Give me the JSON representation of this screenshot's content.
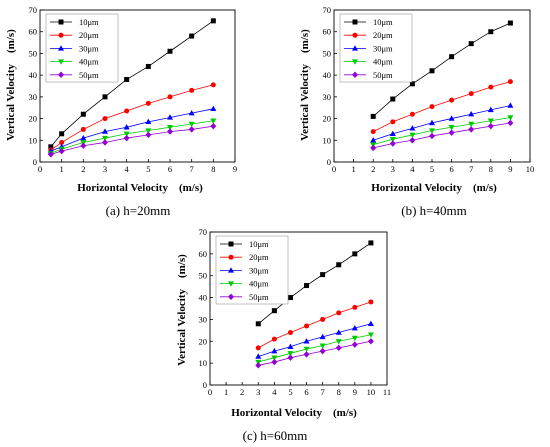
{
  "chart_data": [
    {
      "type": "line",
      "caption": "(a) h=20mm",
      "xlabel": "Horizontal Velocity　(m/s)",
      "ylabel": "Vertical Velocity　(m/s)",
      "xlim": [
        0,
        9
      ],
      "ylim": [
        0,
        70
      ],
      "xticks": [
        "0",
        "1",
        "2",
        "3",
        "4",
        "5",
        "6",
        "7",
        "8",
        "9"
      ],
      "yticks": [
        "0",
        "10",
        "20",
        "30",
        "40",
        "50",
        "60",
        "70"
      ],
      "legend_position": "top-left",
      "x": [
        0.5,
        1,
        2,
        3,
        4,
        5,
        6,
        7,
        8
      ],
      "series": [
        {
          "name": "10μm",
          "color": "#000000",
          "marker": "square",
          "values": [
            7,
            13,
            22,
            30,
            38,
            44,
            51,
            58,
            65
          ]
        },
        {
          "name": "20μm",
          "color": "#ff0000",
          "marker": "circle",
          "values": [
            5.5,
            9,
            15,
            20,
            23.5,
            27,
            30,
            33,
            35.5
          ]
        },
        {
          "name": "30μm",
          "color": "#0000ff",
          "marker": "triangle",
          "values": [
            5,
            7,
            11,
            14,
            16,
            18.5,
            20.5,
            22.5,
            24.5
          ]
        },
        {
          "name": "40μm",
          "color": "#00cc00",
          "marker": "tri-down",
          "values": [
            4,
            6,
            9,
            11,
            13,
            14.5,
            16,
            17.5,
            19
          ]
        },
        {
          "name": "50μm",
          "color": "#9400d3",
          "marker": "diamond",
          "values": [
            3.5,
            5,
            7.5,
            9,
            11,
            12.5,
            14,
            15,
            16.5
          ]
        }
      ]
    },
    {
      "type": "line",
      "caption": "(b) h=40mm",
      "xlabel": "Horizontal Velocity　(m/s)",
      "ylabel": "Vertical Velocity　(m/s)",
      "xlim": [
        0,
        10
      ],
      "ylim": [
        0,
        70
      ],
      "xticks": [
        "0",
        "1",
        "2",
        "3",
        "4",
        "5",
        "6",
        "7",
        "8",
        "9",
        "10"
      ],
      "yticks": [
        "0",
        "10",
        "20",
        "30",
        "40",
        "50",
        "60",
        "70"
      ],
      "legend_position": "top-left",
      "x": [
        2,
        3,
        4,
        5,
        6,
        7,
        8,
        9
      ],
      "series": [
        {
          "name": "10μm",
          "color": "#000000",
          "marker": "square",
          "values": [
            21,
            29,
            36,
            42,
            48.5,
            54.5,
            60,
            64
          ]
        },
        {
          "name": "20μm",
          "color": "#ff0000",
          "marker": "circle",
          "values": [
            14,
            18.5,
            22,
            25.5,
            28.5,
            31.5,
            34.5,
            37
          ]
        },
        {
          "name": "30μm",
          "color": "#0000ff",
          "marker": "triangle",
          "values": [
            10,
            13,
            15.5,
            18,
            20,
            22,
            24,
            26
          ]
        },
        {
          "name": "40μm",
          "color": "#00cc00",
          "marker": "tri-down",
          "values": [
            8,
            10.5,
            12.5,
            14.5,
            16,
            17.5,
            19,
            20.5
          ]
        },
        {
          "name": "50μm",
          "color": "#9400d3",
          "marker": "diamond",
          "values": [
            6.5,
            8.5,
            10,
            12,
            13.5,
            15,
            16.5,
            18
          ]
        }
      ]
    },
    {
      "type": "line",
      "caption": "(c) h=60mm",
      "xlabel": "Horizontal Velocity　(m/s)",
      "ylabel": "Vertical Velocity　(m/s)",
      "xlim": [
        0,
        11
      ],
      "ylim": [
        0,
        70
      ],
      "xticks": [
        "0",
        "1",
        "2",
        "3",
        "4",
        "5",
        "6",
        "7",
        "8",
        "9",
        "10",
        "11"
      ],
      "yticks": [
        "0",
        "10",
        "20",
        "30",
        "40",
        "50",
        "60",
        "70"
      ],
      "legend_position": "top-left",
      "x": [
        3,
        4,
        5,
        6,
        7,
        8,
        9,
        10
      ],
      "series": [
        {
          "name": "10μm",
          "color": "#000000",
          "marker": "square",
          "values": [
            28,
            34,
            40,
            45.5,
            50.5,
            55,
            60,
            65
          ]
        },
        {
          "name": "20μm",
          "color": "#ff0000",
          "marker": "circle",
          "values": [
            17,
            21,
            24,
            27,
            30,
            33,
            35.5,
            38
          ]
        },
        {
          "name": "30μm",
          "color": "#0000ff",
          "marker": "triangle",
          "values": [
            13,
            15.5,
            17.5,
            20,
            22,
            24,
            26,
            28
          ]
        },
        {
          "name": "40μm",
          "color": "#00cc00",
          "marker": "tri-down",
          "values": [
            10.5,
            12.5,
            14.5,
            16.5,
            18,
            20,
            21.5,
            23
          ]
        },
        {
          "name": "50μm",
          "color": "#9400d3",
          "marker": "diamond",
          "values": [
            9,
            10.5,
            12.5,
            14,
            15.5,
            17,
            18.5,
            20
          ]
        }
      ]
    }
  ]
}
